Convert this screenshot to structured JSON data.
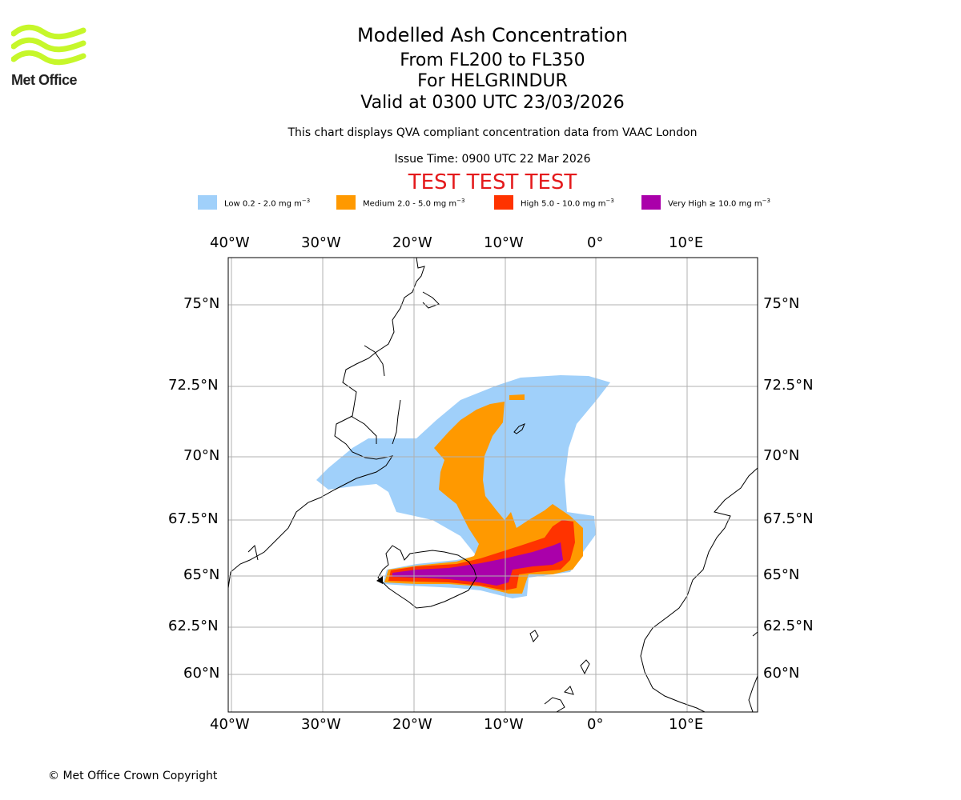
{
  "header": {
    "title": "Modelled Ash Concentration",
    "flight_levels": "From FL200 to FL350",
    "volcano": "For HELGRINDUR",
    "valid_time": "Valid at 0300 UTC 23/03/2026",
    "description": "This chart displays QVA compliant concentration data from VAAC London",
    "issue_time": "Issue Time: 0900 UTC 22 Mar 2026",
    "test_banner": "TEST TEST TEST"
  },
  "logo": {
    "text": "Met Office"
  },
  "legend": {
    "items": [
      {
        "label": "Low 0.2 - 2.0 mg m",
        "unit_exp": "−3",
        "color": "#a0d0fa"
      },
      {
        "label": "Medium 2.0 - 5.0 mg m",
        "unit_exp": "−3",
        "color": "#ff9900"
      },
      {
        "label": "High 5.0 - 10.0 mg m",
        "unit_exp": "−3",
        "color": "#ff3300"
      },
      {
        "label": "Very High  ≥  10.0 mg m",
        "unit_exp": "−3",
        "color": "#aa00aa"
      }
    ]
  },
  "map": {
    "lon_labels": [
      "40°W",
      "30°W",
      "20°W",
      "10°W",
      "0°",
      "10°E"
    ],
    "lat_labels": [
      "75°N",
      "72.5°N",
      "70°N",
      "67.5°N",
      "65°N",
      "62.5°N",
      "60°N"
    ],
    "gridline_color": "#b0b0b0"
  },
  "footer": {
    "copyright": "© Met Office Crown Copyright"
  }
}
